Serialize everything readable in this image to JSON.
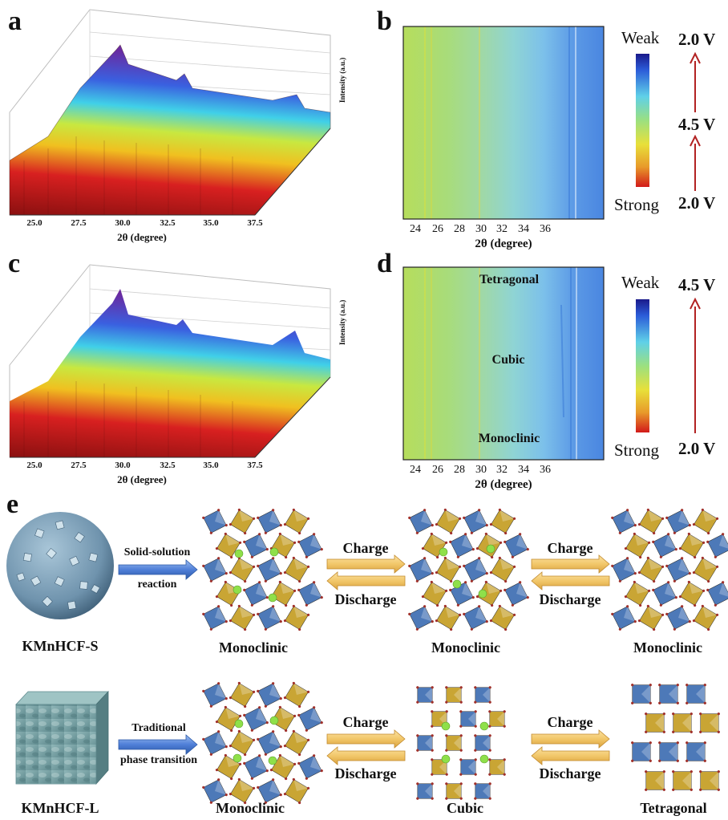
{
  "panels": {
    "a": "a",
    "b": "b",
    "c": "c",
    "d": "d",
    "e": "e"
  },
  "panel_a": {
    "xlabel": "2θ (degree)",
    "ylabel": "Intensity (a.u.)",
    "ticks": [
      "25.0",
      "27.5",
      "30.0",
      "32.5",
      "35.0",
      "37.5"
    ]
  },
  "panel_c": {
    "xlabel": "2θ (degree)",
    "ylabel": "Intensity (a.u.)",
    "ticks": [
      "25.0",
      "27.5",
      "30.0",
      "32.5",
      "35.0",
      "37.5"
    ]
  },
  "panel_b": {
    "xlabel": "2θ (degree)",
    "ticks": [
      "24",
      "26",
      "28",
      "30",
      "32",
      "34",
      "36"
    ],
    "colorbar_top": "Weak",
    "colorbar_bottom": "Strong",
    "voltage_top": "2.0 V",
    "voltage_mid": "4.5 V",
    "voltage_bottom": "2.0 V"
  },
  "panel_d": {
    "xlabel": "2θ (degree)",
    "ticks": [
      "24",
      "26",
      "28",
      "30",
      "32",
      "34",
      "36"
    ],
    "colorbar_top": "Weak",
    "colorbar_bottom": "Strong",
    "voltage_top": "4.5 V",
    "voltage_bottom": "2.0 V",
    "phase_top": "Tetragonal",
    "phase_mid": "Cubic",
    "phase_bottom": "Monoclinic"
  },
  "panel_e": {
    "row1": {
      "material": "KMnHCF-S",
      "process_line1": "Solid-solution",
      "process_line2": "reaction",
      "phase1": "Monoclinic",
      "phase2": "Monoclinic",
      "phase3": "Monoclinic",
      "charge1": "Charge",
      "discharge1": "Discharge",
      "charge2": "Charge",
      "discharge2": "Discharge"
    },
    "row2": {
      "material": "KMnHCF-L",
      "process_line1": "Traditional",
      "process_line2": "phase transition",
      "phase1": "Monoclinic",
      "phase2": "Cubic",
      "phase3": "Tetragonal",
      "charge1": "Charge",
      "discharge1": "Discharge",
      "charge2": "Charge",
      "discharge2": "Discharge"
    }
  },
  "colors": {
    "arrow_red": "#b22222",
    "block_arrow_blue": "#4f7fd8",
    "block_arrow_orange": "#f2c76a",
    "octa_blue": "#4d79b8",
    "octa_gold": "#c9a534",
    "ion_green": "#8fe04a"
  }
}
